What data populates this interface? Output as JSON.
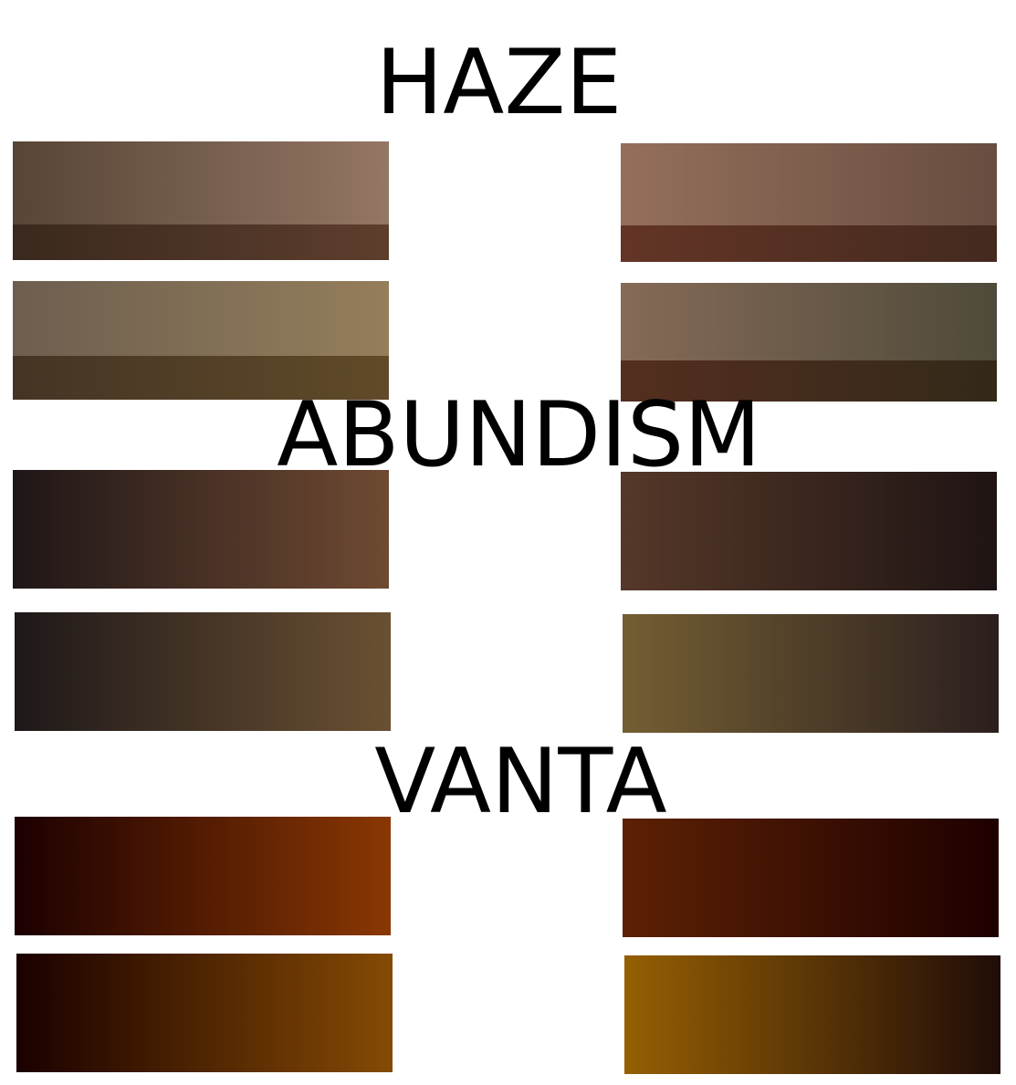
{
  "sections": [
    {
      "title": "HAZE",
      "swatches": [
        {
          "top_from": "#574536",
          "top_to": "#947664",
          "bottom_from": "#3a291e",
          "bottom_to": "#5d3e2d"
        },
        {
          "top_from": "#946f5b",
          "top_to": "#684d40",
          "bottom_from": "#643526",
          "bottom_to": "#432a1f"
        },
        {
          "top_from": "#6d5e4f",
          "top_to": "#947e5b",
          "bottom_from": "#443424",
          "bottom_to": "#604a28"
        },
        {
          "top_from": "#856a57",
          "top_to": "#4f4a3a",
          "bottom_from": "#542e1f",
          "bottom_to": "#332919"
        }
      ]
    },
    {
      "title": "ABUNDISM",
      "swatches": [
        {
          "top_from": "#1f1617",
          "top_to": "#6f4a32"
        },
        {
          "top_from": "#553828",
          "top_to": "#1f1414"
        },
        {
          "top_from": "#1e1819",
          "top_to": "#6a5032"
        },
        {
          "top_from": "#745e33",
          "top_to": "#2b1f1e"
        }
      ]
    },
    {
      "title": "VANTA",
      "swatches": [
        {
          "top_from": "#1c0002",
          "top_to": "#8a3703"
        },
        {
          "top_from": "#5c2105",
          "top_to": "#1e0000"
        },
        {
          "top_from": "#1a0000",
          "top_to": "#854a04"
        },
        {
          "top_from": "#955f03",
          "top_to": "#200c08"
        }
      ]
    }
  ]
}
